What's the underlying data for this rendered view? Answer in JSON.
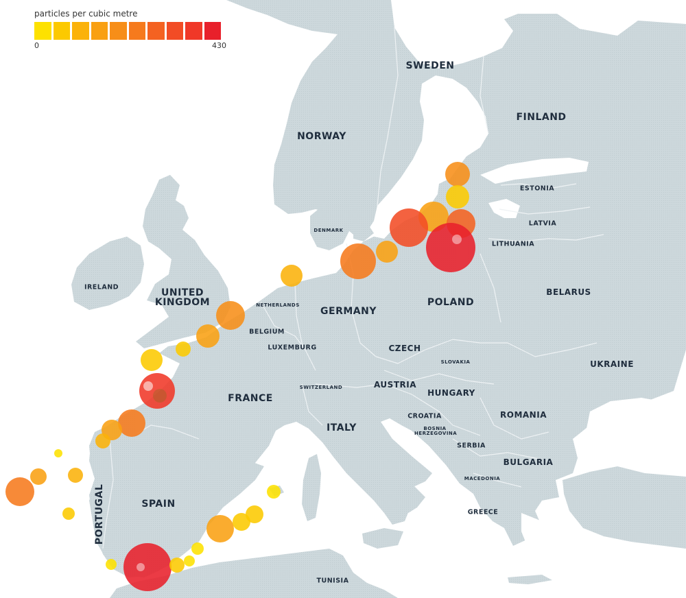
{
  "legend": {
    "title": "particles per cubic metre",
    "min_label": "0",
    "max_label": "430",
    "colors": [
      "#fde100",
      "#fcc900",
      "#fbb20a",
      "#f9a012",
      "#f78e18",
      "#f67a1d",
      "#f46221",
      "#f24c25",
      "#f03828",
      "#e8202b"
    ]
  },
  "countries": {
    "sweden": "SWEDEN",
    "finland": "FINLAND",
    "norway": "NORWAY",
    "estonia": "ESTONIA",
    "latvia": "LATVIA",
    "lithuania": "LITHUANIA",
    "denmark": "DENMARK",
    "poland": "POLAND",
    "belarus": "BELARUS",
    "ireland": "IRELAND",
    "united_kingdom": "UNITED KINGDOM",
    "netherlands": "NETHERLANDS",
    "germany": "GERMANY",
    "belgium": "BELGIUM",
    "luxemburg": "LUXEMBURG",
    "czech": "CZECH",
    "slovakia": "SLOVAKIA",
    "ukraine": "UKRAINE",
    "france": "FRANCE",
    "switzerland": "SWITZERLAND",
    "austria": "AUSTRIA",
    "hungary": "HUNGARY",
    "romania": "ROMANIA",
    "croatia": "CROATIA",
    "bosnia_herzegovina": "BOSNIA HERZEGOVINA",
    "italy": "ITALY",
    "serbia": "SERBIA",
    "bulgaria": "BULGARIA",
    "macedonia": "MACEDONIA",
    "greece": "GREECE",
    "spain": "SPAIN",
    "portugal": "PORTUGAL",
    "tunisia": "TUNISIA"
  },
  "colors": {
    "sea": "#ffffff",
    "land": "#cdd8dc",
    "border": "#eef2f4",
    "label": "#1f2d3d"
  }
}
